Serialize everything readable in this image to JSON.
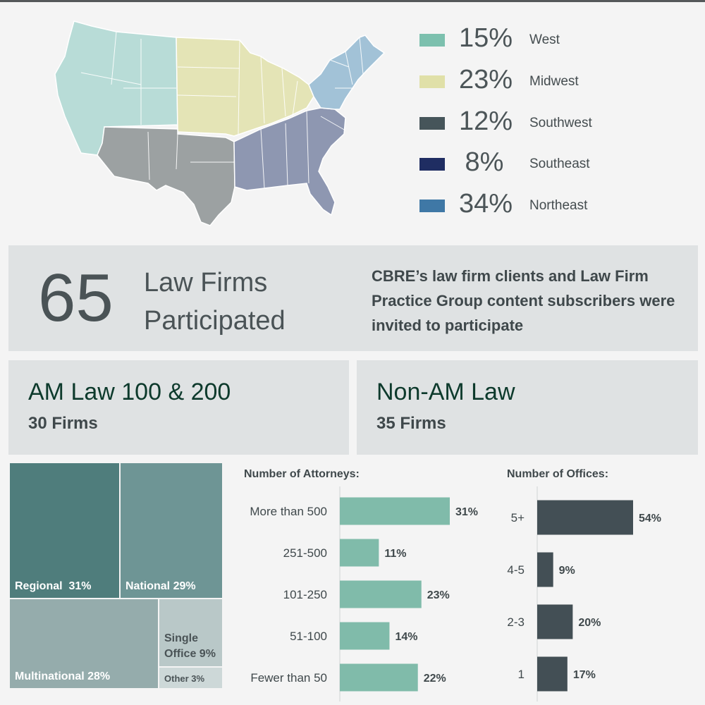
{
  "colors": {
    "west": "#b8dcd7",
    "midwest": "#e4e4b6",
    "southwest": "#9ca1a2",
    "southeast": "#8e97b1",
    "northeast": "#a2c2d7",
    "attorney_bar": "#80bbaa",
    "office_bar": "#434f55",
    "summary_bg": "#dfe2e3",
    "group_title": "#0d3a2c"
  },
  "legend": [
    {
      "pct": "15%",
      "name": "West",
      "color": "#7cc0ae"
    },
    {
      "pct": "23%",
      "name": "Midwest",
      "color": "#e0e0a8"
    },
    {
      "pct": "12%",
      "name": "Southwest",
      "color": "#46555a"
    },
    {
      "pct": "8%",
      "name": "Southeast",
      "color": "#1f2d62"
    },
    {
      "pct": "34%",
      "name": "Northeast",
      "color": "#3f78a6"
    }
  ],
  "summary": {
    "count": "65",
    "label_line1": "Law Firms",
    "label_line2": "Participated",
    "description": "CBRE’s law firm clients and Law Firm Practice Group content subscribers were invited to participate"
  },
  "groups": {
    "amlaw": {
      "title": "AM Law 100 & 200",
      "count": "30 Firms"
    },
    "nonamlaw": {
      "title": "Non-AM Law",
      "count": "35 Firms"
    }
  },
  "chart_data": [
    {
      "type": "treemap",
      "items": [
        {
          "label": "Regional  31%",
          "value": 31,
          "color": "#4f7d7c"
        },
        {
          "label": "National 29%",
          "value": 29,
          "color": "#6e9595"
        },
        {
          "label": "Multinational 28%",
          "value": 28,
          "color": "#95acac"
        },
        {
          "label_line1": "Single",
          "label_line2": "Office 9%",
          "value": 9,
          "color": "#b9c8c8"
        },
        {
          "label": "Other 3%",
          "value": 3,
          "color": "#cdd8d8"
        }
      ]
    },
    {
      "type": "bar",
      "orientation": "horizontal",
      "title": "Number of Attorneys:",
      "categories": [
        "More than 500",
        "251-500",
        "101-250",
        "51-100",
        "Fewer than 50"
      ],
      "values": [
        31,
        11,
        23,
        14,
        22
      ],
      "value_labels": [
        "31%",
        "11%",
        "23%",
        "14%",
        "22%"
      ],
      "color": "#80bbaa",
      "xlim": [
        0,
        31
      ]
    },
    {
      "type": "bar",
      "orientation": "horizontal",
      "title": "Number of Offices:",
      "categories": [
        "5+",
        "4-5",
        "2-3",
        "1"
      ],
      "values": [
        54,
        9,
        20,
        17
      ],
      "value_labels": [
        "54%",
        "9%",
        "20%",
        "17%"
      ],
      "color": "#434f55",
      "xlim": [
        0,
        54
      ]
    }
  ]
}
